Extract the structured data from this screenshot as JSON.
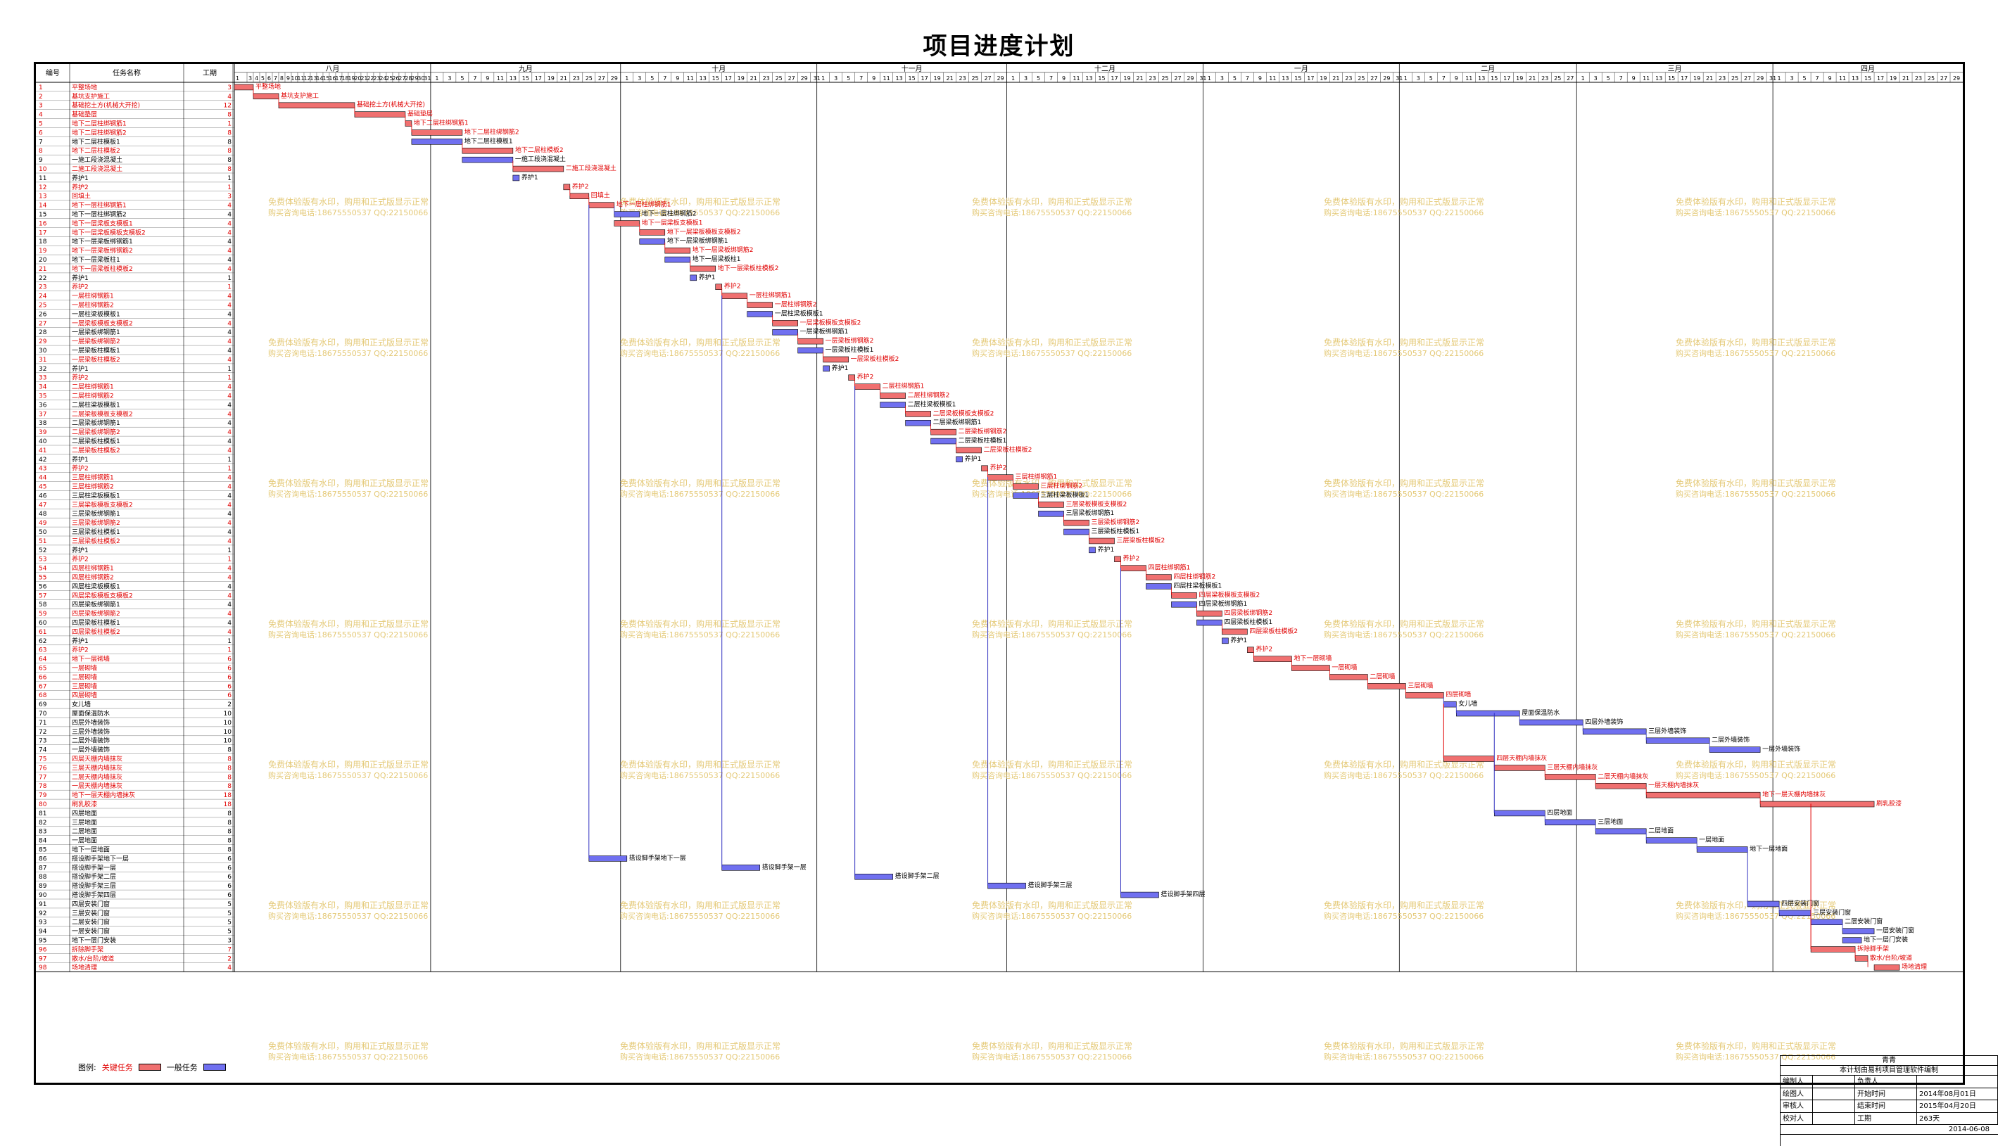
{
  "title": "项目进度计划",
  "header": {
    "col_id": "编号",
    "col_name": "任务名称",
    "col_dur": "工期"
  },
  "months": [
    "八月",
    "九月",
    "十月",
    "十一月",
    "十二月",
    "一月",
    "二月",
    "三月",
    "四月"
  ],
  "month_days": [
    31,
    30,
    31,
    30,
    31,
    31,
    28,
    31,
    30
  ],
  "colors": {
    "critical": "#f07070",
    "normal": "#7070f0",
    "critical_text": "#e00000",
    "link": "#3030c0",
    "watermark": "#e0c060"
  },
  "watermark": {
    "line1": "免费体验版有水印，购用和正式版显示正常",
    "line2": "购买咨询电话:18675550537 QQ:22150066"
  },
  "legend": {
    "label": "图例:",
    "critical": "关键任务",
    "normal": "一般任务"
  },
  "titleblock": {
    "company": "青青",
    "subtitle": "本计划由易利项目管理软件编制",
    "rows": [
      {
        "k1": "编制人",
        "v1": "",
        "k2": "负责人",
        "v2": ""
      },
      {
        "k1": "绘图人",
        "v1": "",
        "k2": "开始时间",
        "v2": "2014年08月01日"
      },
      {
        "k1": "审核人",
        "v1": "",
        "k2": "结束时间",
        "v2": "2015年04月20日"
      },
      {
        "k1": "校对人",
        "v1": "",
        "k2": "工期",
        "v2": "263天"
      }
    ],
    "date": "2014-06-08"
  },
  "tasks": [
    {
      "id": "1",
      "name": "平整场地",
      "dur": 3,
      "start": 1,
      "crit": true
    },
    {
      "id": "2",
      "name": "基坑支护施工",
      "dur": 4,
      "start": 4,
      "crit": true
    },
    {
      "id": "3",
      "name": "基础挖土方(机械大开挖)",
      "dur": 12,
      "start": 8,
      "crit": true
    },
    {
      "id": "4",
      "name": "基础垫层",
      "dur": 8,
      "start": 20,
      "crit": true
    },
    {
      "id": "5",
      "name": "地下二层柱绑钢筋1",
      "dur": 1,
      "start": 28,
      "crit": true
    },
    {
      "id": "6",
      "name": "地下二层柱绑钢筋2",
      "dur": 8,
      "start": 29,
      "crit": true
    },
    {
      "id": "7",
      "name": "地下二层柱模板1",
      "dur": 8,
      "start": 29,
      "crit": false
    },
    {
      "id": "8",
      "name": "地下二层柱模板2",
      "dur": 8,
      "start": 37,
      "crit": true
    },
    {
      "id": "9",
      "name": "一施工段浇混凝土",
      "dur": 8,
      "start": 37,
      "crit": false
    },
    {
      "id": "10",
      "name": "二施工段浇混凝土",
      "dur": 8,
      "start": 45,
      "crit": true
    },
    {
      "id": "11",
      "name": "养护1",
      "dur": 1,
      "start": 45,
      "crit": false
    },
    {
      "id": "12",
      "name": "养护2",
      "dur": 1,
      "start": 53,
      "crit": true
    },
    {
      "id": "13",
      "name": "回填土",
      "dur": 3,
      "start": 54,
      "crit": true
    },
    {
      "id": "14",
      "name": "地下一层柱绑钢筋1",
      "dur": 4,
      "start": 57,
      "crit": true
    },
    {
      "id": "15",
      "name": "地下一层柱绑钢筋2",
      "dur": 4,
      "start": 61,
      "crit": false
    },
    {
      "id": "16",
      "name": "地下一层梁板支模板1",
      "dur": 4,
      "start": 61,
      "crit": true
    },
    {
      "id": "17",
      "name": "地下一层梁板模板支模板2",
      "dur": 4,
      "start": 65,
      "crit": true
    },
    {
      "id": "18",
      "name": "地下一层梁板绑钢筋1",
      "dur": 4,
      "start": 65,
      "crit": false
    },
    {
      "id": "19",
      "name": "地下一层梁板绑钢筋2",
      "dur": 4,
      "start": 69,
      "crit": true
    },
    {
      "id": "20",
      "name": "地下一层梁板柱1",
      "dur": 4,
      "start": 69,
      "crit": false
    },
    {
      "id": "21",
      "name": "地下一层梁板柱模板2",
      "dur": 4,
      "start": 73,
      "crit": true
    },
    {
      "id": "22",
      "name": "养护1",
      "dur": 1,
      "start": 73,
      "crit": false
    },
    {
      "id": "23",
      "name": "养护2",
      "dur": 1,
      "start": 77,
      "crit": true
    },
    {
      "id": "24",
      "name": "一层柱绑钢筋1",
      "dur": 4,
      "start": 78,
      "crit": true
    },
    {
      "id": "25",
      "name": "一层柱绑钢筋2",
      "dur": 4,
      "start": 82,
      "crit": true
    },
    {
      "id": "26",
      "name": "一层柱梁板模板1",
      "dur": 4,
      "start": 82,
      "crit": false
    },
    {
      "id": "27",
      "name": "一层梁板模板支模板2",
      "dur": 4,
      "start": 86,
      "crit": true
    },
    {
      "id": "28",
      "name": "一层梁板绑钢筋1",
      "dur": 4,
      "start": 86,
      "crit": false
    },
    {
      "id": "29",
      "name": "一层梁板绑钢筋2",
      "dur": 4,
      "start": 90,
      "crit": true
    },
    {
      "id": "30",
      "name": "一层梁板柱模板1",
      "dur": 4,
      "start": 90,
      "crit": false
    },
    {
      "id": "31",
      "name": "一层梁板柱模板2",
      "dur": 4,
      "start": 94,
      "crit": true
    },
    {
      "id": "32",
      "name": "养护1",
      "dur": 1,
      "start": 94,
      "crit": false
    },
    {
      "id": "33",
      "name": "养护2",
      "dur": 1,
      "start": 98,
      "crit": true
    },
    {
      "id": "34",
      "name": "二层柱绑钢筋1",
      "dur": 4,
      "start": 99,
      "crit": true
    },
    {
      "id": "35",
      "name": "二层柱绑钢筋2",
      "dur": 4,
      "start": 103,
      "crit": true
    },
    {
      "id": "36",
      "name": "二层柱梁板模板1",
      "dur": 4,
      "start": 103,
      "crit": false
    },
    {
      "id": "37",
      "name": "二层梁板模板支模板2",
      "dur": 4,
      "start": 107,
      "crit": true
    },
    {
      "id": "38",
      "name": "二层梁板绑钢筋1",
      "dur": 4,
      "start": 107,
      "crit": false
    },
    {
      "id": "39",
      "name": "二层梁板绑钢筋2",
      "dur": 4,
      "start": 111,
      "crit": true
    },
    {
      "id": "40",
      "name": "二层梁板柱模板1",
      "dur": 4,
      "start": 111,
      "crit": false
    },
    {
      "id": "41",
      "name": "二层梁板柱模板2",
      "dur": 4,
      "start": 115,
      "crit": true
    },
    {
      "id": "42",
      "name": "养护1",
      "dur": 1,
      "start": 115,
      "crit": false
    },
    {
      "id": "43",
      "name": "养护2",
      "dur": 1,
      "start": 119,
      "crit": true
    },
    {
      "id": "44",
      "name": "三层柱绑钢筋1",
      "dur": 4,
      "start": 120,
      "crit": true
    },
    {
      "id": "45",
      "name": "三层柱绑钢筋2",
      "dur": 4,
      "start": 124,
      "crit": true
    },
    {
      "id": "46",
      "name": "三层柱梁板模板1",
      "dur": 4,
      "start": 124,
      "crit": false
    },
    {
      "id": "47",
      "name": "三层梁板模板支模板2",
      "dur": 4,
      "start": 128,
      "crit": true
    },
    {
      "id": "48",
      "name": "三层梁板绑钢筋1",
      "dur": 4,
      "start": 128,
      "crit": false
    },
    {
      "id": "49",
      "name": "三层梁板绑钢筋2",
      "dur": 4,
      "start": 132,
      "crit": true
    },
    {
      "id": "50",
      "name": "三层梁板柱模板1",
      "dur": 4,
      "start": 132,
      "crit": false
    },
    {
      "id": "51",
      "name": "三层梁板柱模板2",
      "dur": 4,
      "start": 136,
      "crit": true
    },
    {
      "id": "52",
      "name": "养护1",
      "dur": 1,
      "start": 136,
      "crit": false
    },
    {
      "id": "53",
      "name": "养护2",
      "dur": 1,
      "start": 140,
      "crit": true
    },
    {
      "id": "54",
      "name": "四层柱绑钢筋1",
      "dur": 4,
      "start": 141,
      "crit": true
    },
    {
      "id": "55",
      "name": "四层柱绑钢筋2",
      "dur": 4,
      "start": 145,
      "crit": true
    },
    {
      "id": "56",
      "name": "四层柱梁板模板1",
      "dur": 4,
      "start": 145,
      "crit": false
    },
    {
      "id": "57",
      "name": "四层梁板模板支模板2",
      "dur": 4,
      "start": 149,
      "crit": true
    },
    {
      "id": "58",
      "name": "四层梁板绑钢筋1",
      "dur": 4,
      "start": 149,
      "crit": false
    },
    {
      "id": "59",
      "name": "四层梁板绑钢筋2",
      "dur": 4,
      "start": 153,
      "crit": true
    },
    {
      "id": "60",
      "name": "四层梁板柱模板1",
      "dur": 4,
      "start": 153,
      "crit": false
    },
    {
      "id": "61",
      "name": "四层梁板柱模板2",
      "dur": 4,
      "start": 157,
      "crit": true
    },
    {
      "id": "62",
      "name": "养护1",
      "dur": 1,
      "start": 157,
      "crit": false
    },
    {
      "id": "63",
      "name": "养护2",
      "dur": 1,
      "start": 161,
      "crit": true
    },
    {
      "id": "64",
      "name": "地下一层砌墙",
      "dur": 6,
      "start": 162,
      "crit": true
    },
    {
      "id": "65",
      "name": "一层砌墙",
      "dur": 6,
      "start": 168,
      "crit": true
    },
    {
      "id": "66",
      "name": "二层砌墙",
      "dur": 6,
      "start": 174,
      "crit": true
    },
    {
      "id": "67",
      "name": "三层砌墙",
      "dur": 6,
      "start": 180,
      "crit": true
    },
    {
      "id": "68",
      "name": "四层砌墙",
      "dur": 6,
      "start": 186,
      "crit": true
    },
    {
      "id": "69",
      "name": "女儿墙",
      "dur": 2,
      "start": 192,
      "crit": false
    },
    {
      "id": "70",
      "name": "屋面保温防水",
      "dur": 10,
      "start": 194,
      "crit": false
    },
    {
      "id": "71",
      "name": "四层外墙装饰",
      "dur": 10,
      "start": 204,
      "crit": false
    },
    {
      "id": "72",
      "name": "三层外墙装饰",
      "dur": 10,
      "start": 214,
      "crit": false
    },
    {
      "id": "73",
      "name": "二层外墙装饰",
      "dur": 10,
      "start": 224,
      "crit": false
    },
    {
      "id": "74",
      "name": "一层外墙装饰",
      "dur": 8,
      "start": 234,
      "crit": false
    },
    {
      "id": "75",
      "name": "四层天棚内墙抹灰",
      "dur": 8,
      "start": 192,
      "crit": true
    },
    {
      "id": "76",
      "name": "三层天棚内墙抹灰",
      "dur": 8,
      "start": 200,
      "crit": true
    },
    {
      "id": "77",
      "name": "二层天棚内墙抹灰",
      "dur": 8,
      "start": 208,
      "crit": true
    },
    {
      "id": "78",
      "name": "一层天棚内墙抹灰",
      "dur": 8,
      "start": 216,
      "crit": true
    },
    {
      "id": "79",
      "name": "地下一层天棚内墙抹灰",
      "dur": 18,
      "start": 224,
      "crit": true
    },
    {
      "id": "80",
      "name": "刷乳胶漆",
      "dur": 18,
      "start": 242,
      "crit": true
    },
    {
      "id": "81",
      "name": "四层地面",
      "dur": 8,
      "start": 200,
      "crit": false
    },
    {
      "id": "82",
      "name": "三层地面",
      "dur": 8,
      "start": 208,
      "crit": false
    },
    {
      "id": "83",
      "name": "二层地面",
      "dur": 8,
      "start": 216,
      "crit": false
    },
    {
      "id": "84",
      "name": "一层地面",
      "dur": 8,
      "start": 224,
      "crit": false
    },
    {
      "id": "85",
      "name": "地下一层地面",
      "dur": 8,
      "start": 232,
      "crit": false
    },
    {
      "id": "86",
      "name": "搭设脚手架地下一层",
      "dur": 6,
      "start": 57,
      "crit": false
    },
    {
      "id": "87",
      "name": "搭设脚手架一层",
      "dur": 6,
      "start": 78,
      "crit": false
    },
    {
      "id": "88",
      "name": "搭设脚手架二层",
      "dur": 6,
      "start": 99,
      "crit": false
    },
    {
      "id": "89",
      "name": "搭设脚手架三层",
      "dur": 6,
      "start": 120,
      "crit": false
    },
    {
      "id": "90",
      "name": "搭设脚手架四层",
      "dur": 6,
      "start": 141,
      "crit": false
    },
    {
      "id": "91",
      "name": "四层安装门窗",
      "dur": 5,
      "start": 240,
      "crit": false
    },
    {
      "id": "92",
      "name": "三层安装门窗",
      "dur": 5,
      "start": 245,
      "crit": false
    },
    {
      "id": "93",
      "name": "二层安装门窗",
      "dur": 5,
      "start": 250,
      "crit": false
    },
    {
      "id": "94",
      "name": "一层安装门窗",
      "dur": 5,
      "start": 255,
      "crit": false
    },
    {
      "id": "95",
      "name": "地下一层门安装",
      "dur": 3,
      "start": 255,
      "crit": false
    },
    {
      "id": "96",
      "name": "拆除脚手架",
      "dur": 7,
      "start": 250,
      "crit": true
    },
    {
      "id": "97",
      "name": "散水/台阶/坡道",
      "dur": 2,
      "start": 257,
      "crit": true
    },
    {
      "id": "98",
      "name": "场地清理",
      "dur": 4,
      "start": 260,
      "crit": true
    }
  ]
}
